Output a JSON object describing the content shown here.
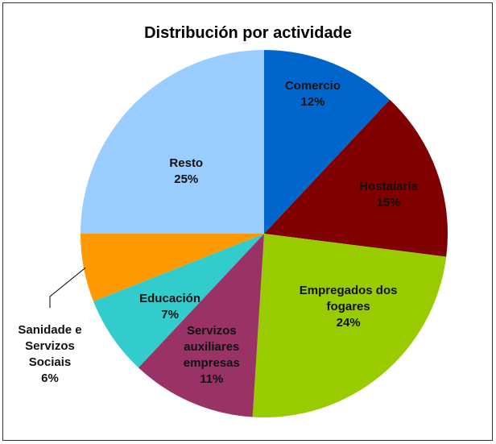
{
  "chart_data": {
    "type": "pie",
    "title": "Distribución por actividade",
    "categories": [
      "Comercio",
      "Hostalaría",
      "Empregados dos fogares",
      "Servizos auxiliares empresas",
      "Educación",
      "Sanidade e Servizos Sociais",
      "Resto"
    ],
    "values": [
      12,
      15,
      24,
      11,
      7,
      6,
      25
    ],
    "value_labels": [
      "12%",
      "15%",
      "24%",
      "11%",
      "7%",
      "6%",
      "25%"
    ],
    "colors": [
      "#0066cc",
      "#800000",
      "#99cc00",
      "#993366",
      "#33cccc",
      "#ff9900",
      "#99ccff"
    ]
  }
}
